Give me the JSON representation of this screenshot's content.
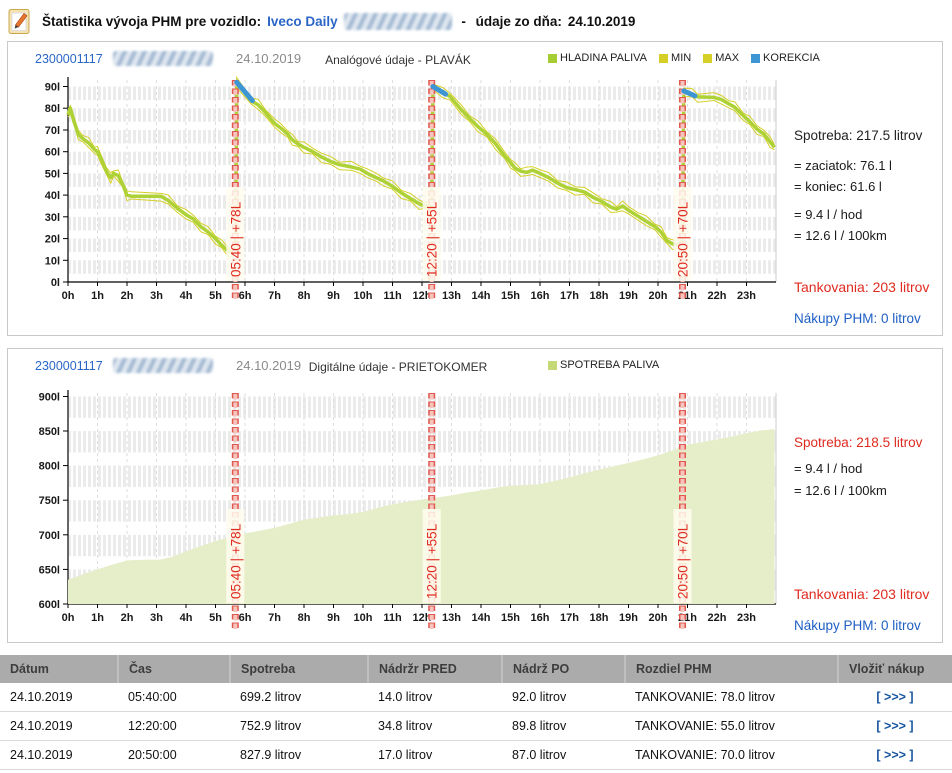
{
  "header": {
    "title_prefix": "Štatistika vývoja PHM pre vozidlo:",
    "vehicle": "Iveco Daily",
    "dash": " - ",
    "date_label": "údaje zo dňa:",
    "date": "24.10.2019"
  },
  "panel1": {
    "device_id": "2300001117",
    "date": "24.10.2019",
    "title": "Analógové údaje - PLAVÁK",
    "legend": [
      {
        "label": "HLADINA PALIVA",
        "color": "#a6ce33"
      },
      {
        "label": "MIN",
        "color": "#d6cf28"
      },
      {
        "label": "MAX",
        "color": "#d6cf28"
      },
      {
        "label": "KOREKCIA",
        "color": "#3e95d3"
      }
    ],
    "info": {
      "spotreba": "Spotreba: 217.5 litrov",
      "start": "= zaciatok: 76.1 l",
      "end": "= koniec: 61.6 l",
      "per_hour": "=  9.4 l / hod",
      "per_100km": "=  12.6 l / 100km",
      "refuels": "Tankovania: 203 litrov",
      "purchases": "Nákupy PHM: 0 litrov"
    }
  },
  "panel2": {
    "device_id": "2300001117",
    "date": "24.10.2019",
    "title": "Digitálne údaje - PRIETOKOMER",
    "legend": [
      {
        "label": "SPOTREBA PALIVA",
        "color": "#c6d977"
      }
    ],
    "info": {
      "spotreba": "Spotreba: 218.5 litrov",
      "per_hour": "= 9.4 l / hod",
      "per_100km": "= 12.6 l / 100km",
      "refuels": "Tankovania: 203 litrov",
      "purchases": "Nákupy PHM: 0 litrov"
    }
  },
  "chart_data": [
    {
      "type": "line",
      "title": "Analógové údaje - PLAVÁK",
      "y_suffix": "l",
      "x_suffix": "h",
      "ylim": [
        0,
        93
      ],
      "yticks": [
        0,
        10,
        20,
        30,
        40,
        50,
        60,
        70,
        80,
        90
      ],
      "xticks_hours": [
        0,
        23
      ],
      "grid": true,
      "legend_position": "top",
      "minmax_color": "#d6cf28",
      "korekcia_color": "#3e95d3",
      "marker_color": "#e0584e",
      "top_pad": 4,
      "axis_y": 206,
      "marker_below": 18,
      "series": [
        {
          "name": "HLADINA PALIVA",
          "color": "#aed136",
          "points": [
            [
              0,
              77
            ],
            [
              0.08,
              80
            ],
            [
              0.2,
              74
            ],
            [
              0.35,
              68
            ],
            [
              0.5,
              66
            ],
            [
              0.7,
              64
            ],
            [
              0.9,
              61
            ],
            [
              1.0,
              60
            ],
            [
              1.15,
              56
            ],
            [
              1.3,
              51
            ],
            [
              1.45,
              48
            ],
            [
              1.55,
              50
            ],
            [
              1.7,
              49
            ],
            [
              1.85,
              45
            ],
            [
              2.0,
              40
            ],
            [
              2.15,
              39.5
            ],
            [
              3.15,
              39.5
            ],
            [
              3.4,
              37.5
            ],
            [
              3.7,
              34
            ],
            [
              4.0,
              31
            ],
            [
              4.25,
              29
            ],
            [
              4.5,
              25.5
            ],
            [
              4.75,
              23
            ],
            [
              5.0,
              20
            ],
            [
              5.2,
              17
            ],
            [
              5.45,
              14
            ],
            [
              5.68,
              13.8
            ],
            [
              5.72,
              92
            ],
            [
              6.2,
              83.5
            ],
            [
              6.45,
              81.5
            ],
            [
              6.7,
              78
            ],
            [
              7.0,
              73
            ],
            [
              7.25,
              70.5
            ],
            [
              7.45,
              68
            ],
            [
              7.6,
              65.5
            ],
            [
              7.8,
              63.5
            ],
            [
              8.0,
              62
            ],
            [
              8.3,
              60
            ],
            [
              8.6,
              57.5
            ],
            [
              8.9,
              55.5
            ],
            [
              9.2,
              54
            ],
            [
              9.6,
              53
            ],
            [
              9.9,
              52
            ],
            [
              10.15,
              50
            ],
            [
              10.45,
              48
            ],
            [
              10.7,
              46.5
            ],
            [
              11.0,
              44
            ],
            [
              11.3,
              41
            ],
            [
              11.6,
              38.5
            ],
            [
              11.9,
              36
            ],
            [
              12.1,
              35
            ],
            [
              12.33,
              34.8
            ],
            [
              12.37,
              90
            ],
            [
              12.7,
              87
            ],
            [
              12.95,
              85.5
            ],
            [
              13.1,
              83
            ],
            [
              13.35,
              79
            ],
            [
              13.6,
              75.5
            ],
            [
              13.9,
              71.5
            ],
            [
              14.2,
              68
            ],
            [
              14.5,
              63.5
            ],
            [
              14.8,
              58
            ],
            [
              15.0,
              55
            ],
            [
              15.15,
              52.5
            ],
            [
              15.35,
              51
            ],
            [
              15.55,
              50.5
            ],
            [
              15.75,
              51.5
            ],
            [
              16.0,
              50
            ],
            [
              16.3,
              48
            ],
            [
              16.6,
              45.5
            ],
            [
              16.9,
              43.5
            ],
            [
              17.2,
              42.5
            ],
            [
              17.5,
              41.5
            ],
            [
              17.8,
              39
            ],
            [
              18.1,
              37
            ],
            [
              18.4,
              34.5
            ],
            [
              18.6,
              33.5
            ],
            [
              18.8,
              35
            ],
            [
              19.0,
              33
            ],
            [
              19.3,
              30.5
            ],
            [
              19.6,
              28
            ],
            [
              19.9,
              25.5
            ],
            [
              20.1,
              23
            ],
            [
              20.3,
              19
            ],
            [
              20.5,
              17.5
            ],
            [
              20.83,
              17
            ],
            [
              20.87,
              88
            ],
            [
              21.15,
              86.5
            ],
            [
              21.35,
              85.2
            ],
            [
              21.9,
              85
            ],
            [
              22.15,
              84
            ],
            [
              22.4,
              82
            ],
            [
              22.6,
              80.5
            ],
            [
              22.9,
              76.5
            ],
            [
              23.1,
              74
            ],
            [
              23.35,
              70.5
            ],
            [
              23.6,
              68
            ],
            [
              23.8,
              64.5
            ],
            [
              23.95,
              62
            ]
          ]
        }
      ],
      "korekcia": [
        [
          [
            5.72,
            92
          ],
          [
            6.25,
            83.5
          ]
        ],
        [
          [
            12.37,
            90
          ],
          [
            12.8,
            86.5
          ]
        ],
        [
          [
            20.87,
            88
          ],
          [
            21.25,
            85.7
          ]
        ]
      ],
      "refuels": [
        {
          "hour": 5.67,
          "label": "05:40 | +78L"
        },
        {
          "hour": 12.33,
          "label": "12:20 | +55L"
        },
        {
          "hour": 20.83,
          "label": "20:50 | +70L"
        }
      ]
    },
    {
      "type": "area",
      "title": "Digitálne údaje - PRIETOKOMER",
      "y_suffix": "l",
      "x_suffix": "h",
      "ylim": [
        600,
        905
      ],
      "yticks": [
        600,
        650,
        700,
        750,
        800,
        850,
        900
      ],
      "xticks_hours": [
        0,
        23
      ],
      "grid": true,
      "legend_position": "top",
      "marker_color": "#e0584e",
      "top_pad": 10,
      "axis_y": 221,
      "marker_below": 26,
      "series": [
        {
          "name": "SPOTREBA PALIVA",
          "color": "#e6eec9",
          "points": [
            [
              0,
              635
            ],
            [
              0.5,
              643
            ],
            [
              1,
              650
            ],
            [
              1.5,
              657
            ],
            [
              2,
              663
            ],
            [
              2.6,
              664
            ],
            [
              3.1,
              664
            ],
            [
              3.5,
              668
            ],
            [
              4,
              676
            ],
            [
              4.5,
              684
            ],
            [
              5,
              691
            ],
            [
              5.67,
              699
            ],
            [
              6,
              702
            ],
            [
              6.5,
              706
            ],
            [
              7,
              710
            ],
            [
              7.5,
              716
            ],
            [
              8,
              722
            ],
            [
              8.5,
              725
            ],
            [
              9,
              728
            ],
            [
              9.5,
              730
            ],
            [
              10,
              733
            ],
            [
              10.5,
              739
            ],
            [
              11,
              744
            ],
            [
              11.5,
              748
            ],
            [
              12,
              751
            ],
            [
              12.33,
              753
            ],
            [
              13,
              757
            ],
            [
              13.5,
              761
            ],
            [
              14,
              764
            ],
            [
              14.5,
              768
            ],
            [
              15,
              771
            ],
            [
              15.5,
              772
            ],
            [
              16,
              773
            ],
            [
              16.5,
              778
            ],
            [
              17,
              783
            ],
            [
              17.5,
              789
            ],
            [
              18,
              794
            ],
            [
              18.5,
              799
            ],
            [
              19,
              804
            ],
            [
              19.5,
              809
            ],
            [
              20,
              815
            ],
            [
              20.5,
              822
            ],
            [
              20.83,
              828
            ],
            [
              21,
              830
            ],
            [
              21.5,
              834
            ],
            [
              22,
              838
            ],
            [
              22.5,
              842
            ],
            [
              23,
              847
            ],
            [
              23.5,
              851
            ],
            [
              23.95,
              853
            ]
          ]
        }
      ],
      "refuels": [
        {
          "hour": 5.67,
          "label": "05:40 | +78L"
        },
        {
          "hour": 12.33,
          "label": "12:20 | +55L"
        },
        {
          "hour": 20.83,
          "label": "20:50 | +70L"
        }
      ]
    }
  ],
  "table": {
    "headers": [
      "Dátum",
      "Čas",
      "Spotreba",
      "Nádržr PRED",
      "Nádrž PO",
      "Rozdiel PHM",
      "Vložiť nákup"
    ],
    "rows": [
      [
        "24.10.2019",
        "05:40:00",
        "699.2 litrov",
        "14.0 litrov",
        "92.0 litrov",
        "TANKOVANIE: 78.0 litrov",
        "[ >>> ]"
      ],
      [
        "24.10.2019",
        "12:20:00",
        "752.9 litrov",
        "34.8 litrov",
        "89.8 litrov",
        "TANKOVANIE: 55.0 litrov",
        "[ >>> ]"
      ],
      [
        "24.10.2019",
        "20:50:00",
        "827.9 litrov",
        "17.0 litrov",
        "87.0 litrov",
        "TANKOVANIE: 70.0 litrov",
        "[ >>> ]"
      ]
    ]
  }
}
